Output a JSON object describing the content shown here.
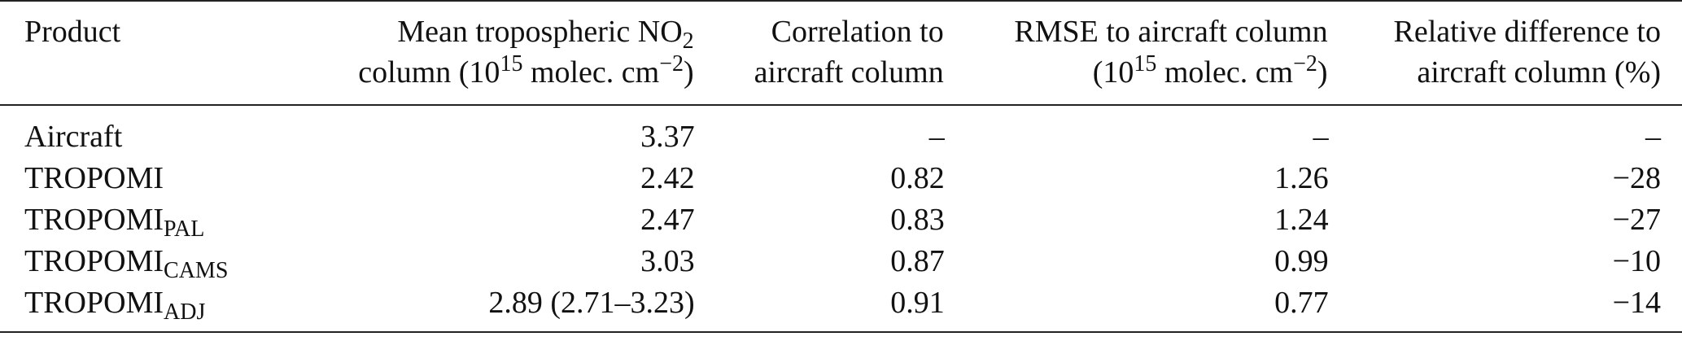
{
  "columns": {
    "product": {
      "line1": "Product"
    },
    "mean": {
      "line1_pre": "Mean tropospheric NO",
      "line1_sub": "2",
      "line2_pre": "column (10",
      "line2_sup": "15",
      "line2_mid": " molec. cm",
      "line2_sup2": "−2",
      "line2_post": ")"
    },
    "corr": {
      "line1": "Correlation to",
      "line2": "aircraft column"
    },
    "rmse": {
      "line1": "RMSE to aircraft column",
      "line2_pre": "(10",
      "line2_sup": "15",
      "line2_mid": " molec. cm",
      "line2_sup2": "−2",
      "line2_post": ")"
    },
    "reldiff": {
      "line1": "Relative difference to",
      "line2": "aircraft column (%)"
    }
  },
  "rows": [
    {
      "name": "Aircraft",
      "sub": "",
      "mean": "3.37",
      "corr": "–",
      "rmse": "–",
      "reldiff": "–"
    },
    {
      "name": "TROPOMI",
      "sub": "",
      "mean": "2.42",
      "corr": "0.82",
      "rmse": "1.26",
      "reldiff": "−28"
    },
    {
      "name": "TROPOMI",
      "sub": "PAL",
      "mean": "2.47",
      "corr": "0.83",
      "rmse": "1.24",
      "reldiff": "−27"
    },
    {
      "name": "TROPOMI",
      "sub": "CAMS",
      "mean": "3.03",
      "corr": "0.87",
      "rmse": "0.99",
      "reldiff": "−10"
    },
    {
      "name": "TROPOMI",
      "sub": "ADJ",
      "mean": "2.89 (2.71–3.23)",
      "corr": "0.91",
      "rmse": "0.77",
      "reldiff": "−14"
    }
  ]
}
